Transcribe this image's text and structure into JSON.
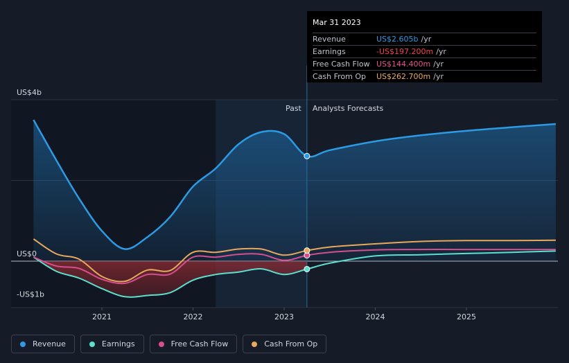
{
  "tooltip": {
    "date": "Mar 31 2023",
    "rows": [
      {
        "label": "Revenue",
        "value": "US$2.605b",
        "unit": "/yr",
        "color": "#2d9be3"
      },
      {
        "label": "Earnings",
        "value": "-US$197.200m",
        "unit": "/yr",
        "color": "#f0444b"
      },
      {
        "label": "Free Cash Flow",
        "value": "US$144.400m",
        "unit": "/yr",
        "color": "#e0528f"
      },
      {
        "label": "Cash From Op",
        "value": "US$262.700m",
        "unit": "/yr",
        "color": "#e8a95c"
      }
    ]
  },
  "regions": {
    "past": "Past",
    "forecast": "Analysts Forecasts"
  },
  "legend": [
    {
      "label": "Revenue",
      "color": "#2d9be3"
    },
    {
      "label": "Earnings",
      "color": "#5ce0cd"
    },
    {
      "label": "Free Cash Flow",
      "color": "#d54f8f"
    },
    {
      "label": "Cash From Op",
      "color": "#e8a95c"
    }
  ],
  "chart_data": {
    "type": "line",
    "y_tick_labels": [
      "US$4b",
      "US$0",
      "-US$1b"
    ],
    "x_tick_labels": [
      "2021",
      "2022",
      "2023",
      "2024",
      "2025"
    ],
    "ylim": [
      -1.2,
      4.0
    ],
    "xlim": [
      2020.25,
      2025.98
    ],
    "past_end": 2023.25,
    "highlight_start": 2022.25,
    "series": [
      {
        "name": "Revenue",
        "color": "#2d9be3",
        "x": [
          2020.25,
          2020.5,
          2020.75,
          2021.0,
          2021.25,
          2021.5,
          2021.75,
          2022.0,
          2022.25,
          2022.5,
          2022.75,
          2023.0,
          2023.25,
          2023.5,
          2024.0,
          2024.5,
          2025.0,
          2025.5,
          2025.98
        ],
        "y": [
          3.5,
          2.5,
          1.55,
          0.75,
          0.3,
          0.6,
          1.1,
          1.85,
          2.3,
          2.9,
          3.2,
          3.15,
          2.605,
          2.75,
          2.97,
          3.12,
          3.23,
          3.32,
          3.4
        ]
      },
      {
        "name": "Earnings",
        "color": "#5ce0cd",
        "x": [
          2020.25,
          2020.5,
          2020.75,
          2021.0,
          2021.25,
          2021.5,
          2021.75,
          2022.0,
          2022.25,
          2022.5,
          2022.75,
          2023.0,
          2023.25,
          2023.5,
          2024.0,
          2024.5,
          2025.0,
          2025.5,
          2025.98
        ],
        "y": [
          0.1,
          -0.25,
          -0.42,
          -0.68,
          -0.88,
          -0.85,
          -0.78,
          -0.47,
          -0.33,
          -0.27,
          -0.19,
          -0.33,
          -0.197,
          -0.05,
          0.13,
          0.16,
          0.19,
          0.22,
          0.25
        ]
      },
      {
        "name": "Free Cash Flow",
        "color": "#d54f8f",
        "x": [
          2020.25,
          2020.5,
          2020.75,
          2021.0,
          2021.25,
          2021.5,
          2021.75,
          2022.0,
          2022.25,
          2022.5,
          2022.75,
          2023.0,
          2023.25,
          2023.5,
          2024.0,
          2024.5,
          2025.0,
          2025.5,
          2025.98
        ],
        "y": [
          0.1,
          -0.12,
          -0.18,
          -0.45,
          -0.55,
          -0.33,
          -0.32,
          0.1,
          0.1,
          0.17,
          0.17,
          0.02,
          0.144,
          0.22,
          0.28,
          0.29,
          0.29,
          0.29,
          0.29
        ]
      },
      {
        "name": "Cash From Op",
        "color": "#e8a95c",
        "x": [
          2020.25,
          2020.5,
          2020.75,
          2021.0,
          2021.25,
          2021.5,
          2021.75,
          2022.0,
          2022.25,
          2022.5,
          2022.75,
          2023.0,
          2023.25,
          2023.5,
          2024.0,
          2024.5,
          2025.0,
          2025.5,
          2025.98
        ],
        "y": [
          0.55,
          0.18,
          0.05,
          -0.38,
          -0.5,
          -0.22,
          -0.23,
          0.22,
          0.22,
          0.3,
          0.3,
          0.15,
          0.263,
          0.35,
          0.43,
          0.49,
          0.51,
          0.51,
          0.52
        ]
      }
    ]
  }
}
